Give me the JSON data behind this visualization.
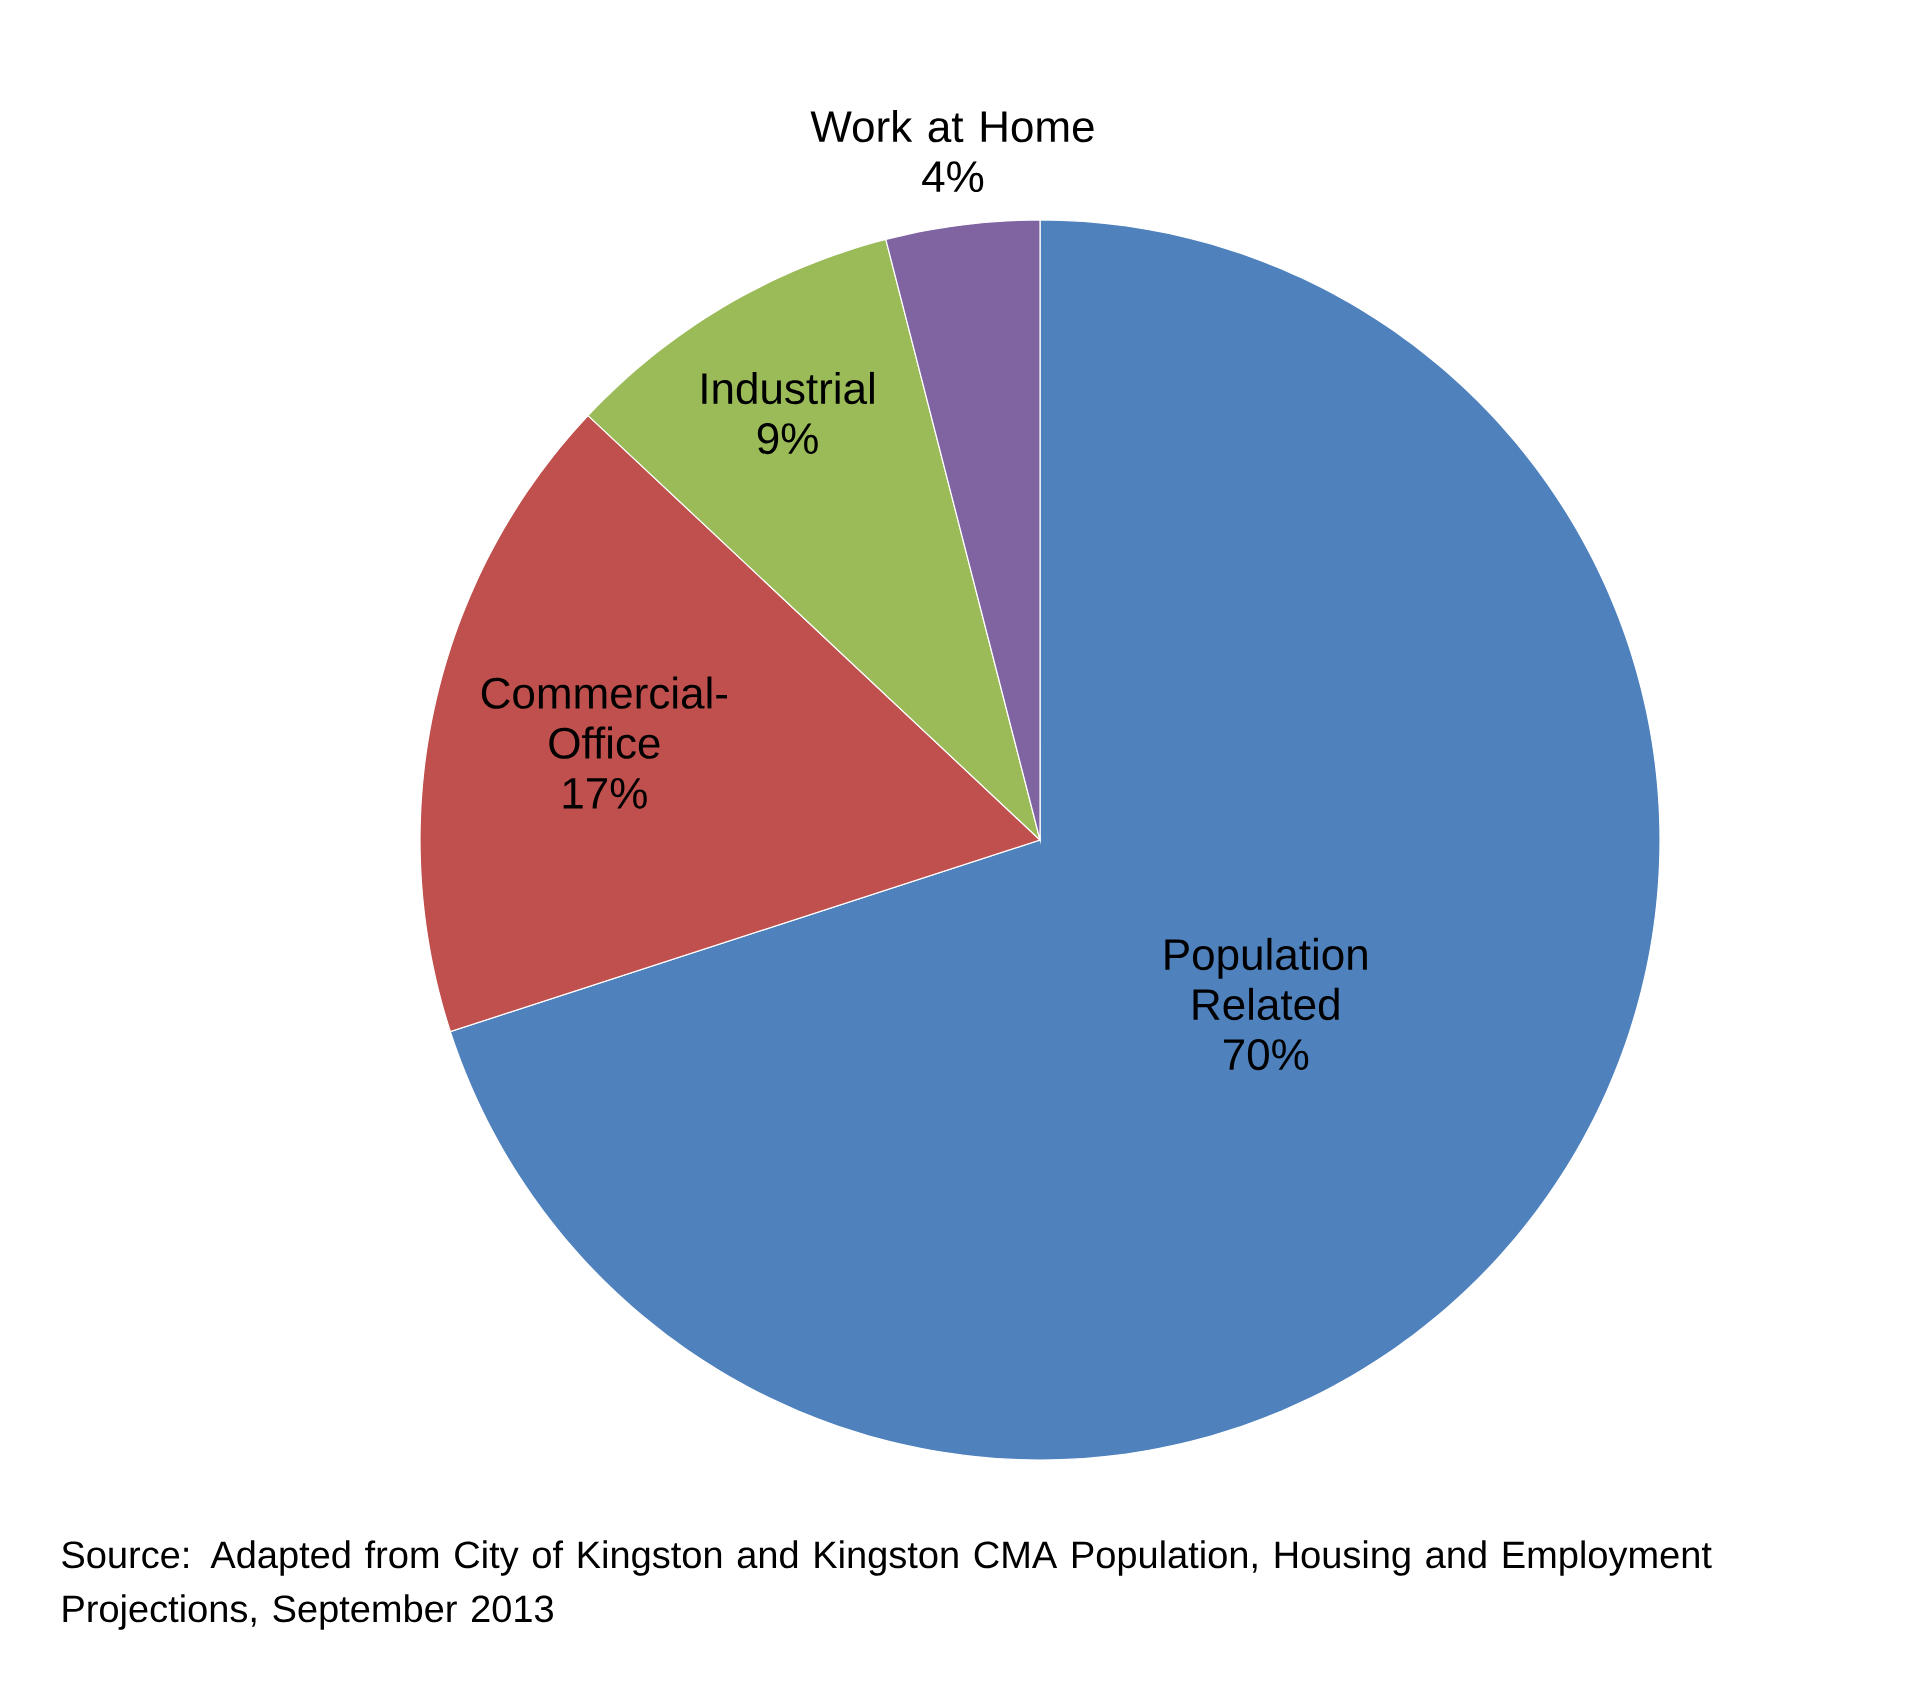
{
  "chart_data": {
    "type": "pie",
    "categories": [
      "Population Related",
      "Commercial-Office",
      "Industrial",
      "Work at Home"
    ],
    "values": [
      70,
      17,
      9,
      4
    ],
    "colors": [
      "#4f81bd",
      "#c0504d",
      "#9bbb59",
      "#8064a2"
    ],
    "value_labels": [
      "70%",
      "17%",
      "9%",
      "4%"
    ],
    "annotations": [
      "Source: Adapted from City of Kingston and Kingston CMA Population, Housing and Employment Projections, September 2013"
    ]
  }
}
